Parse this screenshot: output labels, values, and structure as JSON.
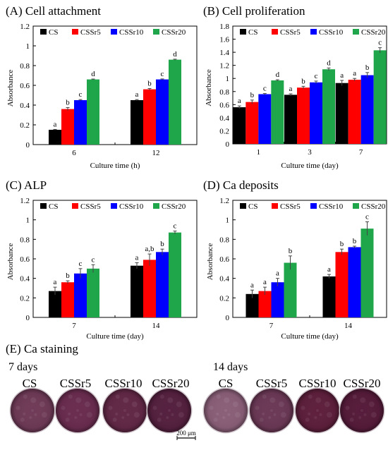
{
  "legend_names": [
    "CS",
    "CSSr5",
    "CSSr10",
    "CSSr20"
  ],
  "series_colors": [
    "#000000",
    "#ff0000",
    "#0000ff",
    "#1fa64a"
  ],
  "chart_data": [
    {
      "id": "A",
      "type": "bar",
      "title": "(A) Cell attachment",
      "xlabel": "Culture time (h)",
      "ylabel": "Absorbance",
      "ylim": [
        0,
        1.2
      ],
      "yticks": [
        "0",
        "0.2",
        "0.4",
        "0.6",
        "0.8",
        "1",
        "1.2"
      ],
      "categories": [
        "6",
        "12"
      ],
      "legend": "top",
      "series": [
        {
          "name": "CS",
          "values": [
            0.15,
            0.45
          ],
          "errors": [
            0.004,
            0.006
          ],
          "letters": [
            "a",
            "a"
          ]
        },
        {
          "name": "CSSr5",
          "values": [
            0.36,
            0.56
          ],
          "errors": [
            0.015,
            0.008
          ],
          "letters": [
            "b",
            "b"
          ]
        },
        {
          "name": "CSSr10",
          "values": [
            0.45,
            0.66
          ],
          "errors": [
            0.006,
            0.005
          ],
          "letters": [
            "c",
            "c"
          ]
        },
        {
          "name": "CSSr20",
          "values": [
            0.66,
            0.86
          ],
          "errors": [
            0.004,
            0.005
          ],
          "letters": [
            "d",
            "d"
          ]
        }
      ]
    },
    {
      "id": "B",
      "type": "bar",
      "title": "(B) Cell proliferation",
      "xlabel": "Culture time (day)",
      "ylabel": "Absorbance",
      "ylim": [
        0,
        1.8
      ],
      "yticks": [
        "0",
        "0.2",
        "0.4",
        "0.6",
        "0.8",
        "1",
        "1.2",
        "1.4",
        "1.6",
        "1.8"
      ],
      "categories": [
        "1",
        "3",
        "7"
      ],
      "legend": "top",
      "series": [
        {
          "name": "CS",
          "values": [
            0.56,
            0.75,
            0.93
          ],
          "errors": [
            0.02,
            0.015,
            0.04
          ],
          "letters": [
            "a",
            "a",
            "a"
          ]
        },
        {
          "name": "CSSr5",
          "values": [
            0.64,
            0.86,
            0.98
          ],
          "errors": [
            0.03,
            0.02,
            0.02
          ],
          "letters": [
            "b",
            "b",
            "a"
          ]
        },
        {
          "name": "CSSr10",
          "values": [
            0.76,
            0.94,
            1.05
          ],
          "errors": [
            0.01,
            0.02,
            0.04
          ],
          "letters": [
            "c",
            "c",
            "b"
          ]
        },
        {
          "name": "CSSr20",
          "values": [
            0.97,
            1.14,
            1.43
          ],
          "errors": [
            0.01,
            0.02,
            0.04
          ],
          "letters": [
            "d",
            "d",
            "c"
          ]
        }
      ]
    },
    {
      "id": "C",
      "type": "bar",
      "title": "(C) ALP",
      "xlabel": "Culture time (day)",
      "ylabel": "Absorbance",
      "ylim": [
        0,
        1.2
      ],
      "yticks": [
        "0",
        "0.2",
        "0.4",
        "0.6",
        "0.8",
        "1",
        "1.2"
      ],
      "categories": [
        "7",
        "14"
      ],
      "legend": "top",
      "series": [
        {
          "name": "CS",
          "values": [
            0.27,
            0.53
          ],
          "errors": [
            0.04,
            0.03
          ],
          "letters": [
            "a",
            "a"
          ]
        },
        {
          "name": "CSSr5",
          "values": [
            0.36,
            0.59
          ],
          "errors": [
            0.015,
            0.06
          ],
          "letters": [
            "b",
            "a,b"
          ]
        },
        {
          "name": "CSSr10",
          "values": [
            0.45,
            0.67
          ],
          "errors": [
            0.05,
            0.03
          ],
          "letters": [
            "c",
            "b"
          ]
        },
        {
          "name": "CSSr20",
          "values": [
            0.5,
            0.87
          ],
          "errors": [
            0.04,
            0.015
          ],
          "letters": [
            "c",
            "c"
          ]
        }
      ]
    },
    {
      "id": "D",
      "type": "bar",
      "title": "(D) Ca deposits",
      "xlabel": "Culture time (day)",
      "ylabel": "Absorbance",
      "ylim": [
        0,
        1.2
      ],
      "yticks": [
        "0",
        "0.2",
        "0.4",
        "0.6",
        "0.8",
        "1",
        "1.2"
      ],
      "categories": [
        "7",
        "14"
      ],
      "legend": "top",
      "series": [
        {
          "name": "CS",
          "values": [
            0.24,
            0.42
          ],
          "errors": [
            0.04,
            0.02
          ],
          "letters": [
            "a",
            "a"
          ]
        },
        {
          "name": "CSSr5",
          "values": [
            0.27,
            0.67
          ],
          "errors": [
            0.04,
            0.03
          ],
          "letters": [
            "a",
            "b"
          ]
        },
        {
          "name": "CSSr10",
          "values": [
            0.36,
            0.72
          ],
          "errors": [
            0.04,
            0.01
          ],
          "letters": [
            "a",
            "b"
          ]
        },
        {
          "name": "CSSr20",
          "values": [
            0.56,
            0.91
          ],
          "errors": [
            0.07,
            0.07
          ],
          "letters": [
            "b",
            "c"
          ]
        }
      ]
    }
  ],
  "staining": {
    "title": "(E) Ca staining",
    "scale_bar": "200 μm",
    "groups": [
      {
        "day_label": "7 days",
        "dishes": [
          {
            "label": "CS",
            "fill": "#6f3a57"
          },
          {
            "label": "CSSr5",
            "fill": "#6a2c4f"
          },
          {
            "label": "CSSr10",
            "fill": "#622846"
          },
          {
            "label": "CSSr20",
            "fill": "#55203f"
          }
        ]
      },
      {
        "day_label": "14 days",
        "dishes": [
          {
            "label": "CS",
            "fill": "#8a5f78"
          },
          {
            "label": "CSSr5",
            "fill": "#6b3855"
          },
          {
            "label": "CSSr10",
            "fill": "#5e1f3c"
          },
          {
            "label": "CSSr20",
            "fill": "#561b3a"
          }
        ]
      }
    ]
  }
}
